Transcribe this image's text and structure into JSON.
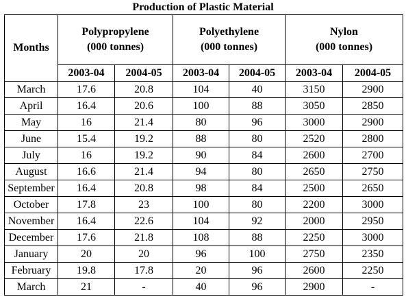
{
  "chart_data": {
    "type": "table",
    "title": "Production of Plastic Material",
    "row_header_label": "Months",
    "groups": [
      {
        "name": "Polypropylene",
        "unit": "(000 tonnes)"
      },
      {
        "name": "Polyethylene",
        "unit": "(000 tonnes)"
      },
      {
        "name": "Nylon",
        "unit": "(000 tonnes)"
      }
    ],
    "years": [
      "2003-04",
      "2004-05"
    ],
    "rows": [
      {
        "month": "March",
        "values": [
          "17.6",
          "20.8",
          "104",
          "40",
          "3150",
          "2900"
        ]
      },
      {
        "month": "April",
        "values": [
          "16.4",
          "20.6",
          "100",
          "88",
          "3050",
          "2850"
        ]
      },
      {
        "month": "May",
        "values": [
          "16",
          "21.4",
          "80",
          "96",
          "3000",
          "2900"
        ]
      },
      {
        "month": "June",
        "values": [
          "15.4",
          "19.2",
          "88",
          "80",
          "2520",
          "2800"
        ]
      },
      {
        "month": "July",
        "values": [
          "16",
          "19.2",
          "90",
          "84",
          "2600",
          "2700"
        ]
      },
      {
        "month": "August",
        "values": [
          "16.6",
          "21.4",
          "94",
          "80",
          "2650",
          "2750"
        ]
      },
      {
        "month": "September",
        "values": [
          "16.4",
          "20.8",
          "98",
          "84",
          "2500",
          "2650"
        ]
      },
      {
        "month": "October",
        "values": [
          "17.8",
          "23",
          "100",
          "80",
          "2200",
          "3000"
        ]
      },
      {
        "month": "November",
        "values": [
          "16.4",
          "22.6",
          "104",
          "92",
          "2000",
          "2950"
        ]
      },
      {
        "month": "December",
        "values": [
          "17.6",
          "21.8",
          "108",
          "88",
          "2250",
          "3000"
        ]
      },
      {
        "month": "January",
        "values": [
          "20",
          "20",
          "96",
          "100",
          "2750",
          "2350"
        ]
      },
      {
        "month": "February",
        "values": [
          "19.8",
          "17.8",
          "20",
          "96",
          "2600",
          "2250"
        ]
      },
      {
        "month": "March",
        "values": [
          "21",
          "-",
          "40",
          "96",
          "2900",
          "-"
        ]
      }
    ]
  }
}
